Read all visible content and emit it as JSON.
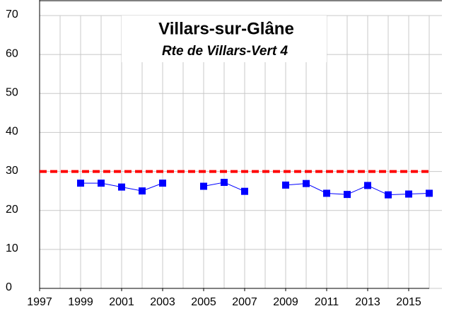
{
  "chart_data": {
    "type": "line",
    "title": "Villars-sur-Glâne",
    "subtitle": "Rte de Villars-Vert 4",
    "x": [
      1999,
      2000,
      2001,
      2002,
      2003,
      2004,
      2005,
      2006,
      2007,
      2008,
      2009,
      2010,
      2011,
      2012,
      2013,
      2014,
      2015,
      2016
    ],
    "series": [
      {
        "color": "#0000ff",
        "values": [
          27,
          27,
          26,
          25,
          27,
          null,
          26.2,
          27.2,
          24.9,
          null,
          26.5,
          26.9,
          24.4,
          24.1,
          26.4,
          24,
          24.2,
          24.4
        ]
      }
    ],
    "reference_line": {
      "value": 30,
      "color": "#ff0000"
    },
    "xlim": [
      1997,
      2016
    ],
    "xticks": [
      1997,
      1999,
      2001,
      2003,
      2005,
      2007,
      2009,
      2011,
      2013,
      2015
    ],
    "ylim": [
      0,
      70
    ],
    "yticks": [
      0,
      10,
      20,
      30,
      40,
      50,
      60,
      70
    ],
    "grid": true
  }
}
